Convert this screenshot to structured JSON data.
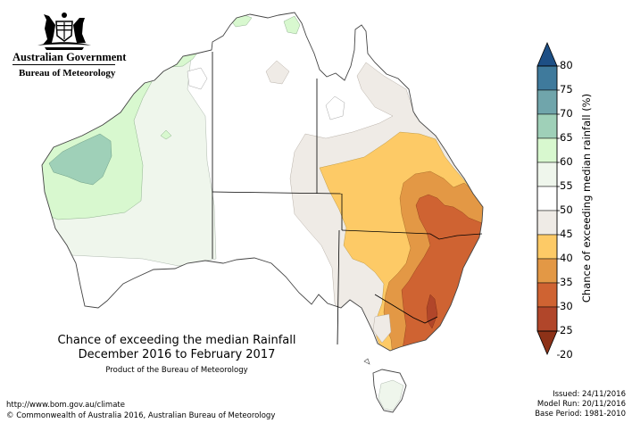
{
  "logo": {
    "line1": "Australian Government",
    "line2": "Bureau of Meteorology"
  },
  "title": {
    "line1": "Chance of exceeding the median Rainfall",
    "line2": "December 2016 to February 2017",
    "product": "Product of the Bureau of Meteorology"
  },
  "footer": {
    "url": "http://www.bom.gov.au/climate",
    "copyright": "© Commonwealth of Australia 2016, Australian Bureau of Meteorology"
  },
  "info": {
    "issued": "Issued: 24/11/2016",
    "model_run": "Model Run: 20/11/2016",
    "base_period": "Base Period: 1981-2010"
  },
  "colorbar": {
    "title": "Chance of exceeding median rainfall (%)",
    "ticks": [
      "80",
      "75",
      "70",
      "65",
      "60",
      "55",
      "50",
      "45",
      "40",
      "35",
      "30",
      "25",
      "20"
    ],
    "colors": {
      "above_75": "#1d4f85",
      "70_75": "#3f7a9c",
      "65_70": "#70a5ab",
      "60_65": "#9fd0b8",
      "55_60": "#d8f8cf",
      "50_55": "#eff6ec",
      "45_50": "#ffffff",
      "40_45": "#efebe6",
      "35_40": "#fdca66",
      "30_35": "#e39845",
      "25_30": "#cf6332",
      "20_25": "#b1462a",
      "below_20": "#8d3218"
    }
  }
}
